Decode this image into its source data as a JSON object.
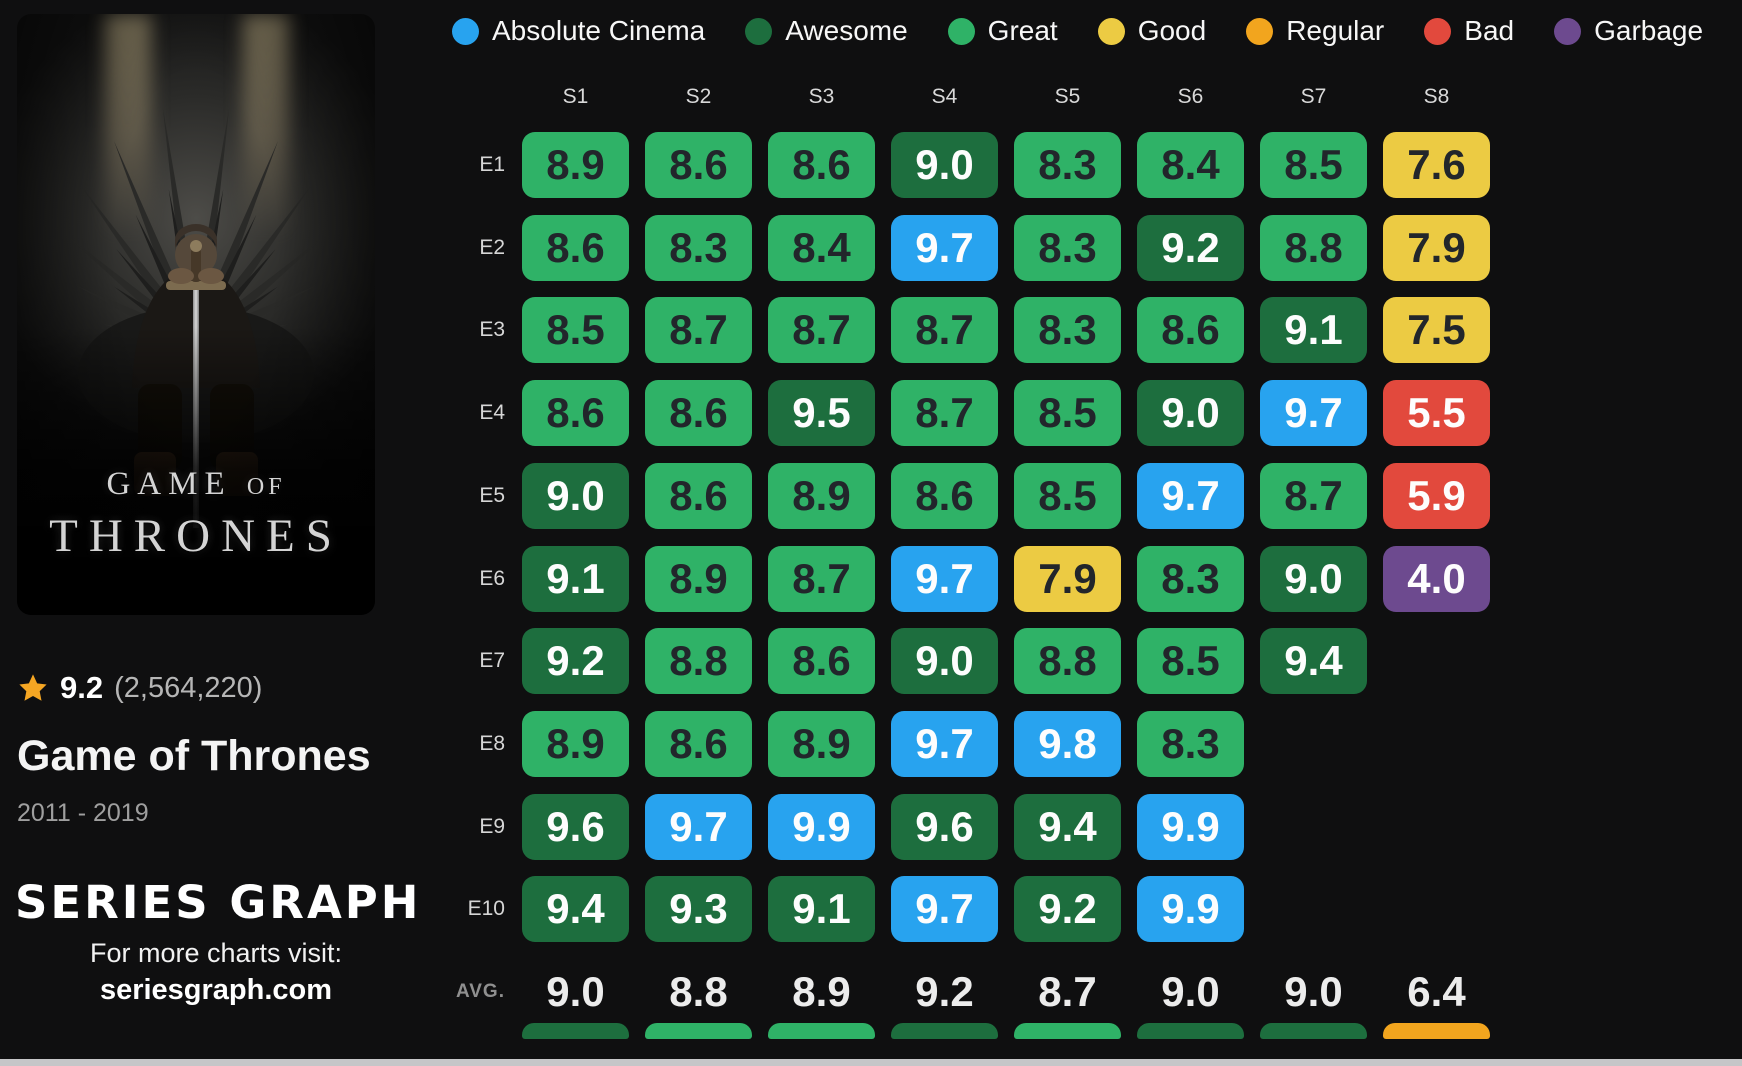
{
  "colors": {
    "absolute_cinema": "#28a3ef",
    "awesome": "#1d6e3e",
    "great": "#2fb267",
    "good": "#eccb43",
    "regular": "#f2a51e",
    "bad": "#e2493d",
    "garbage": "#6d4a8f",
    "star": "#f5a623"
  },
  "sidebar": {
    "poster": {
      "title_line1": "GAME",
      "title_line1_small": "OF",
      "title_line2": "THRONES"
    },
    "rating": {
      "score": "9.2",
      "votes": "(2,564,220)"
    },
    "title": "Game of Thrones",
    "years": "2011 - 2019",
    "logo": "SERIES GRAPH",
    "visit_text": "For more charts visit:",
    "url": "seriesgraph.com"
  },
  "chart_data": {
    "type": "heatmap",
    "title": "Game of Thrones episode ratings by season",
    "columns": [
      "S1",
      "S2",
      "S3",
      "S4",
      "S5",
      "S6",
      "S7",
      "S8"
    ],
    "rows": [
      "E1",
      "E2",
      "E3",
      "E4",
      "E5",
      "E6",
      "E7",
      "E8",
      "E9",
      "E10"
    ],
    "values": [
      [
        "8.9",
        "8.6",
        "8.6",
        "9.0",
        "8.3",
        "8.4",
        "8.5",
        "7.6"
      ],
      [
        "8.6",
        "8.3",
        "8.4",
        "9.7",
        "8.3",
        "9.2",
        "8.8",
        "7.9"
      ],
      [
        "8.5",
        "8.7",
        "8.7",
        "8.7",
        "8.3",
        "8.6",
        "9.1",
        "7.5"
      ],
      [
        "8.6",
        "8.6",
        "9.5",
        "8.7",
        "8.5",
        "9.0",
        "9.7",
        "5.5"
      ],
      [
        "9.0",
        "8.6",
        "8.9",
        "8.6",
        "8.5",
        "9.7",
        "8.7",
        "5.9"
      ],
      [
        "9.1",
        "8.9",
        "8.7",
        "9.7",
        "7.9",
        "8.3",
        "9.0",
        "4.0"
      ],
      [
        "9.2",
        "8.8",
        "8.6",
        "9.0",
        "8.8",
        "8.5",
        "9.4"
      ],
      [
        "8.9",
        "8.6",
        "8.9",
        "9.7",
        "9.8",
        "8.3"
      ],
      [
        "9.6",
        "9.7",
        "9.9",
        "9.6",
        "9.4",
        "9.9"
      ],
      [
        "9.4",
        "9.3",
        "9.1",
        "9.7",
        "9.2",
        "9.9"
      ]
    ],
    "avg_label": "AVG.",
    "averages": [
      "9.0",
      "8.8",
      "8.9",
      "9.2",
      "8.7",
      "9.0",
      "9.0",
      "6.4"
    ],
    "legend": [
      {
        "label": "Absolute Cinema",
        "key": "absolute_cinema"
      },
      {
        "label": "Awesome",
        "key": "awesome"
      },
      {
        "label": "Great",
        "key": "great"
      },
      {
        "label": "Good",
        "key": "good"
      },
      {
        "label": "Regular",
        "key": "regular"
      },
      {
        "label": "Bad",
        "key": "bad"
      },
      {
        "label": "Garbage",
        "key": "garbage"
      }
    ],
    "category_rule": "value>=9.7 absolute_cinema; >=9.0 awesome; >=8.0 great; >=7.0 good; >=6.0 regular; >=5.0 bad; else garbage",
    "legend_position": "top"
  }
}
